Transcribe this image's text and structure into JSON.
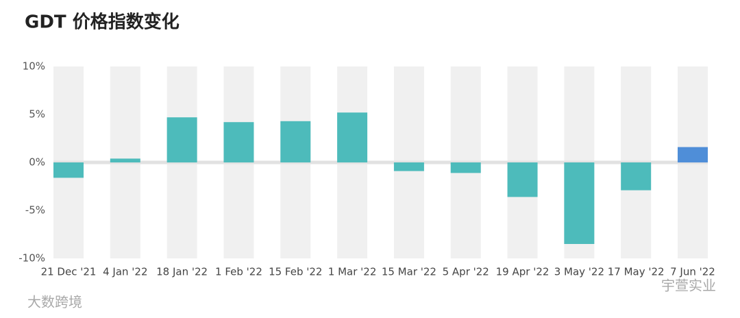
{
  "chart_data": {
    "type": "bar",
    "title": "GDT 价格指数变化",
    "categories": [
      "21 Dec '21",
      "4 Jan '22",
      "18 Jan '22",
      "1 Feb '22",
      "15 Feb '22",
      "1 Mar '22",
      "15 Mar '22",
      "5 Apr '22",
      "19 Apr '22",
      "3 May '22",
      "17 May '22",
      "7 Jun '22"
    ],
    "values": [
      -1.6,
      0.4,
      4.7,
      4.2,
      4.3,
      5.2,
      -0.9,
      -1.1,
      -3.6,
      -8.5,
      -2.9,
      1.6
    ],
    "colors": [
      "#4dbbbb",
      "#4dbbbb",
      "#4dbbbb",
      "#4dbbbb",
      "#4dbbbb",
      "#4dbbbb",
      "#4dbbbb",
      "#4dbbbb",
      "#4dbbbb",
      "#4dbbbb",
      "#4dbbbb",
      "#4f8ed8"
    ],
    "ylim": [
      -10,
      10
    ],
    "yticks": [
      {
        "value": 10,
        "label": "10%"
      },
      {
        "value": 5,
        "label": "5%"
      },
      {
        "value": 0,
        "label": "0%"
      },
      {
        "value": -5,
        "label": "-5%"
      },
      {
        "value": -10,
        "label": "-10%"
      }
    ]
  },
  "watermarks": [
    "大数跨境",
    "宇萱实业"
  ]
}
